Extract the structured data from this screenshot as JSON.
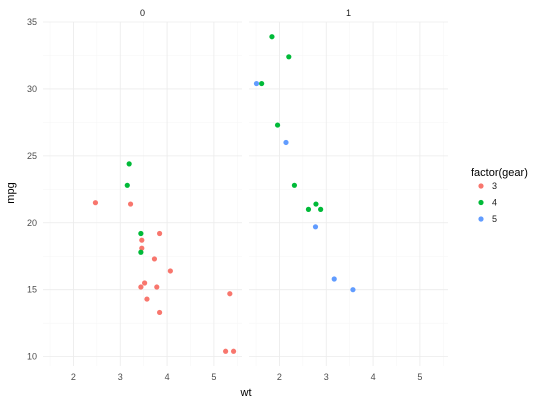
{
  "chart_data": {
    "type": "scatter",
    "xlabel": "wt",
    "ylabel": "mpg",
    "xlim": [
      1.35,
      5.6
    ],
    "ylim": [
      9.3,
      35.0
    ],
    "x_ticks": [
      2,
      3,
      4,
      5
    ],
    "y_ticks": [
      10,
      15,
      20,
      25,
      30,
      35
    ],
    "grid": true,
    "legend": {
      "title": "factor(gear)",
      "placement": "right",
      "entries": [
        {
          "label": "3",
          "color": "#F8766D"
        },
        {
          "label": "4",
          "color": "#00BA38"
        },
        {
          "label": "5",
          "color": "#619CFF"
        }
      ]
    },
    "panels": [
      {
        "strip_label": "0",
        "points": [
          {
            "wt": 2.47,
            "mpg": 21.5,
            "gear": "3"
          },
          {
            "wt": 3.22,
            "mpg": 21.4,
            "gear": "3"
          },
          {
            "wt": 3.46,
            "mpg": 18.7,
            "gear": "3"
          },
          {
            "wt": 3.46,
            "mpg": 18.1,
            "gear": "3"
          },
          {
            "wt": 3.84,
            "mpg": 19.2,
            "gear": "3"
          },
          {
            "wt": 3.73,
            "mpg": 17.3,
            "gear": "3"
          },
          {
            "wt": 4.07,
            "mpg": 16.4,
            "gear": "3"
          },
          {
            "wt": 3.52,
            "mpg": 15.5,
            "gear": "3"
          },
          {
            "wt": 3.44,
            "mpg": 15.2,
            "gear": "3"
          },
          {
            "wt": 3.78,
            "mpg": 15.2,
            "gear": "3"
          },
          {
            "wt": 3.57,
            "mpg": 14.3,
            "gear": "3"
          },
          {
            "wt": 3.84,
            "mpg": 13.3,
            "gear": "3"
          },
          {
            "wt": 5.34,
            "mpg": 14.7,
            "gear": "3"
          },
          {
            "wt": 5.25,
            "mpg": 10.4,
            "gear": "3"
          },
          {
            "wt": 5.42,
            "mpg": 10.4,
            "gear": "3"
          },
          {
            "wt": 3.19,
            "mpg": 24.4,
            "gear": "4"
          },
          {
            "wt": 3.15,
            "mpg": 22.8,
            "gear": "4"
          },
          {
            "wt": 3.44,
            "mpg": 19.2,
            "gear": "4"
          },
          {
            "wt": 3.44,
            "mpg": 17.8,
            "gear": "4"
          }
        ]
      },
      {
        "strip_label": "1",
        "points": [
          {
            "wt": 1.84,
            "mpg": 33.9,
            "gear": "4"
          },
          {
            "wt": 2.2,
            "mpg": 32.4,
            "gear": "4"
          },
          {
            "wt": 1.62,
            "mpg": 30.4,
            "gear": "4"
          },
          {
            "wt": 1.96,
            "mpg": 27.3,
            "gear": "4"
          },
          {
            "wt": 2.32,
            "mpg": 22.8,
            "gear": "4"
          },
          {
            "wt": 2.62,
            "mpg": 21.0,
            "gear": "4"
          },
          {
            "wt": 2.78,
            "mpg": 21.4,
            "gear": "4"
          },
          {
            "wt": 2.88,
            "mpg": 21.0,
            "gear": "4"
          },
          {
            "wt": 1.51,
            "mpg": 30.4,
            "gear": "5"
          },
          {
            "wt": 2.14,
            "mpg": 26.0,
            "gear": "5"
          },
          {
            "wt": 2.77,
            "mpg": 19.7,
            "gear": "5"
          },
          {
            "wt": 3.17,
            "mpg": 15.8,
            "gear": "5"
          },
          {
            "wt": 3.57,
            "mpg": 15.0,
            "gear": "5"
          }
        ]
      }
    ]
  }
}
